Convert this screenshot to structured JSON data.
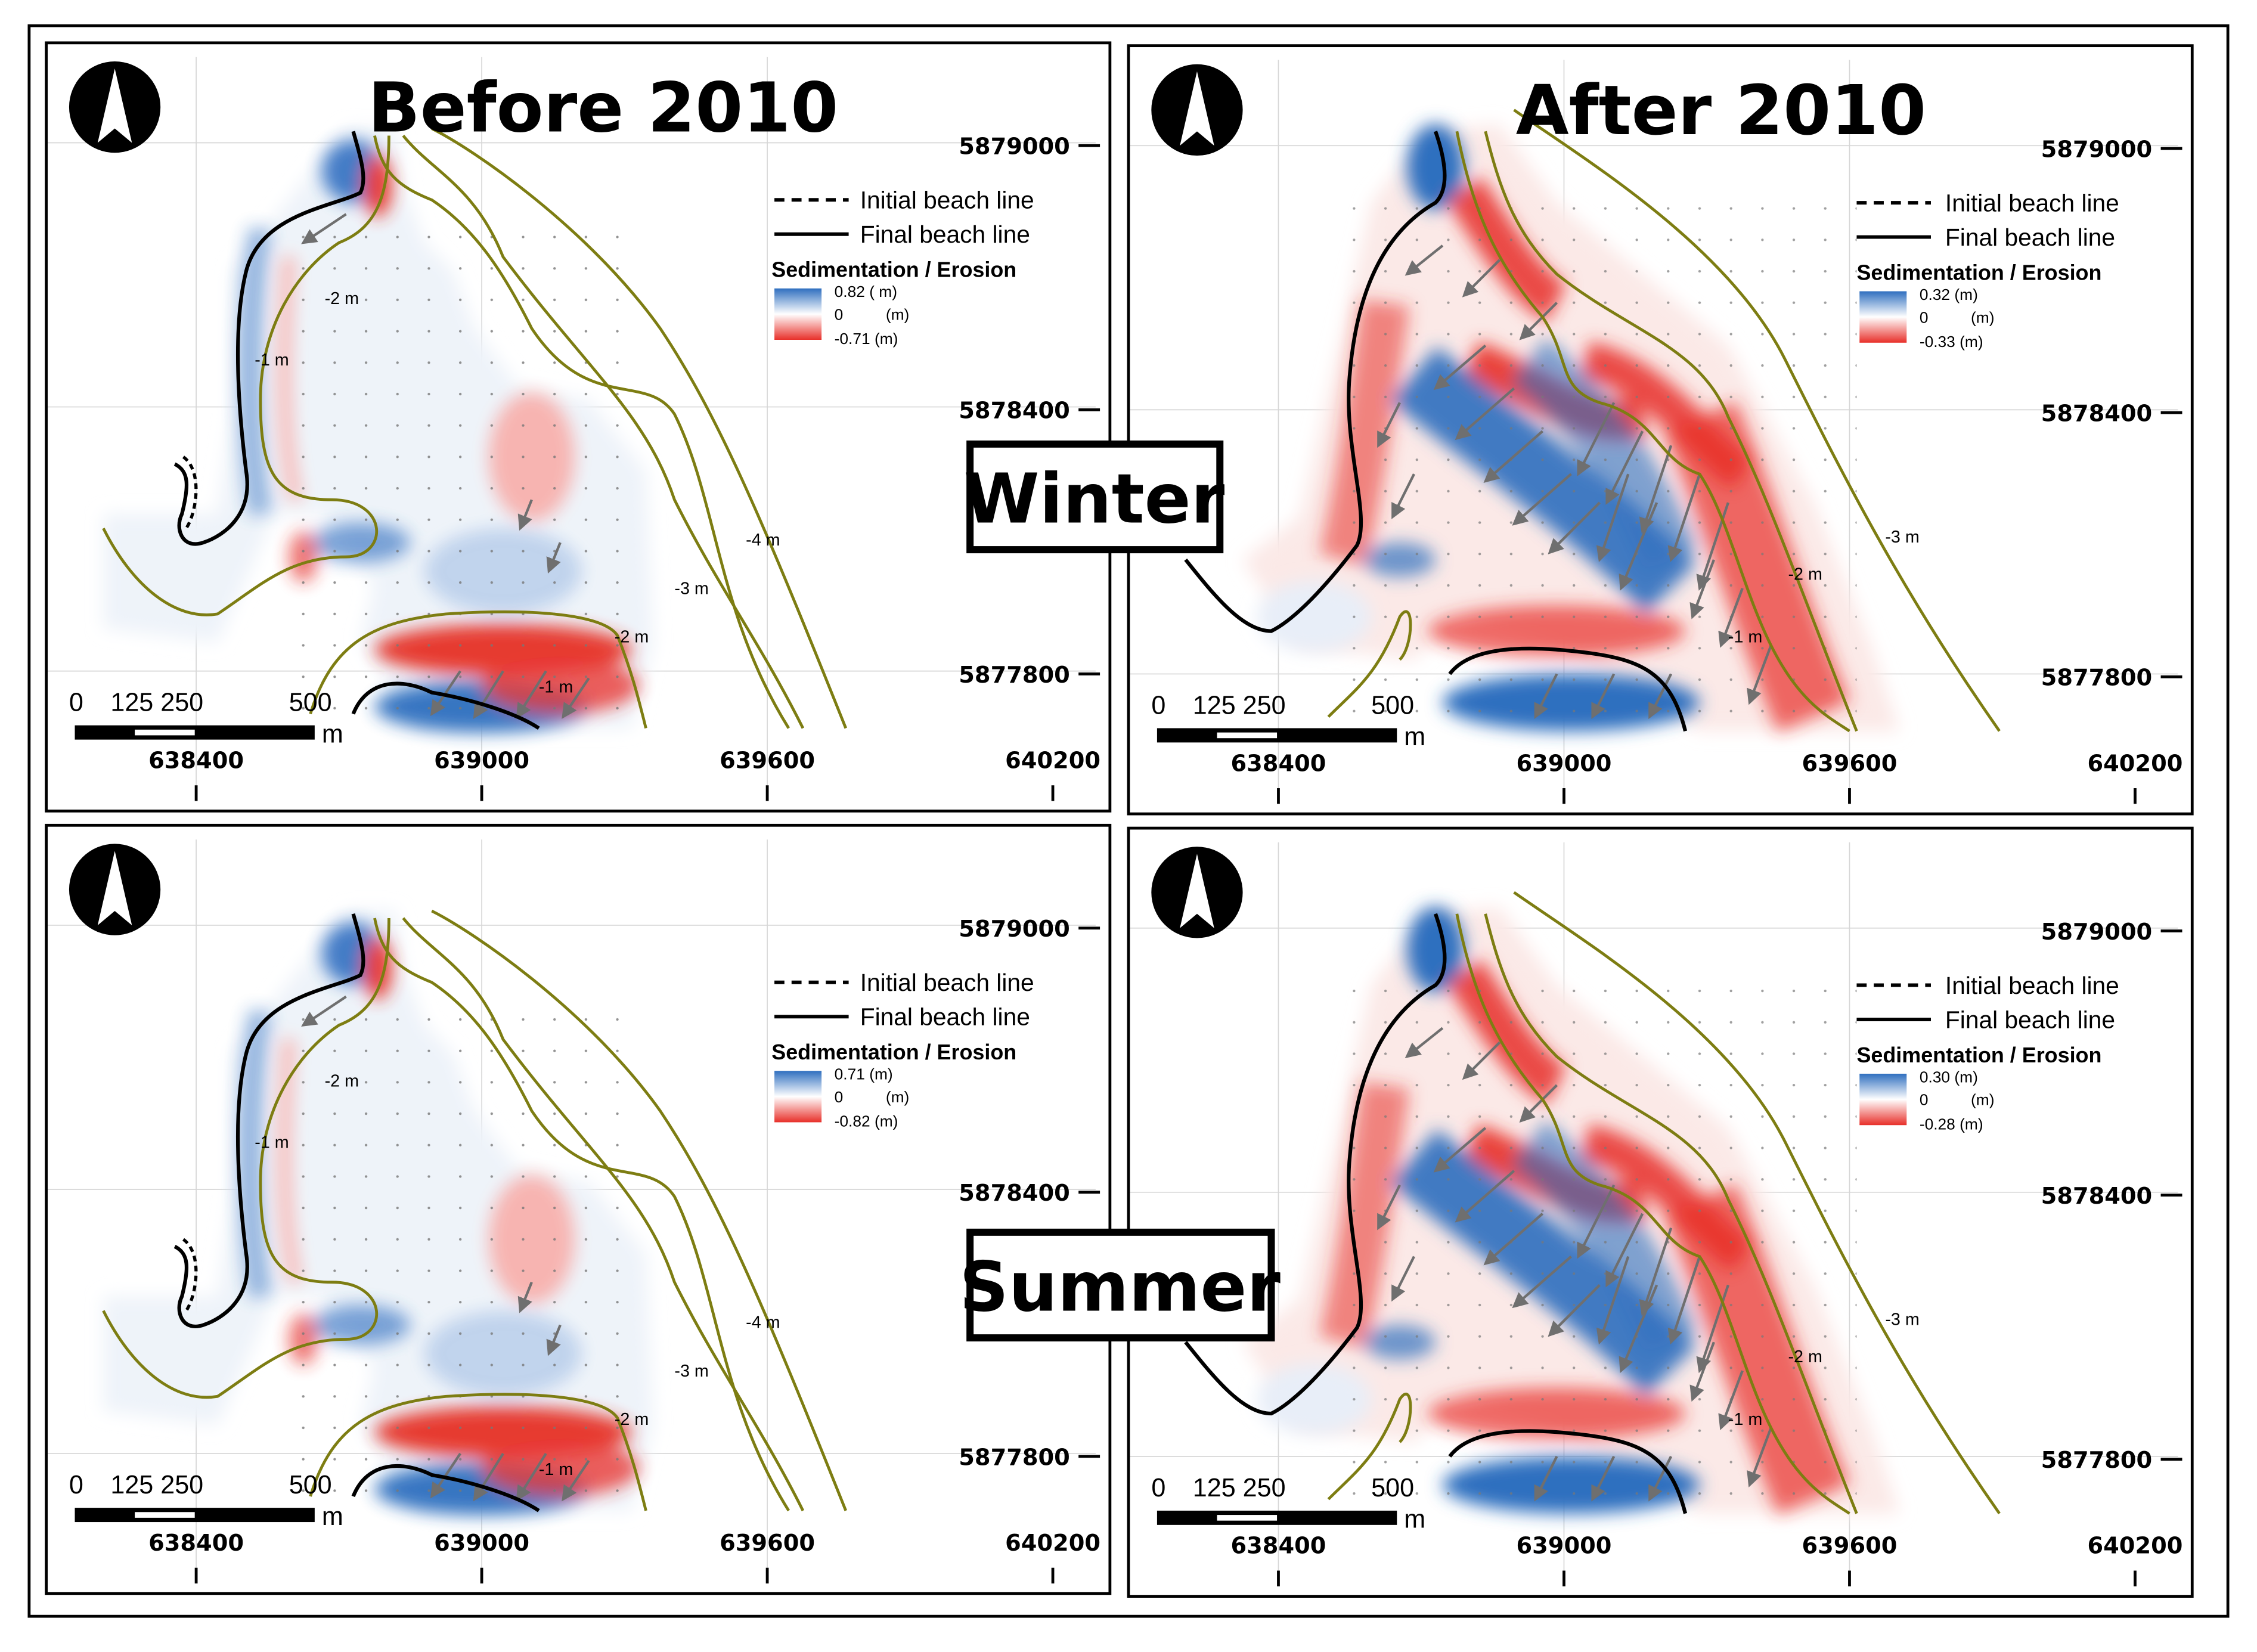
{
  "headers": {
    "before": "Before 2010",
    "after": "After 2010"
  },
  "seasons": {
    "winter": "Winter",
    "summer": "Summer"
  },
  "legend": {
    "initial": "Initial beach line",
    "final": "Final beach line",
    "colorbar_title": "Sedimentation / Erosion",
    "zero_label": "0",
    "unit": "(m)"
  },
  "panels": {
    "before_winter": {
      "max_label": "0.82 ( m)",
      "min_label": "-0.71 (m)"
    },
    "after_winter": {
      "max_label": "0.32  (m)",
      "min_label": "-0.33 (m)"
    },
    "before_summer": {
      "max_label": "0.71  (m)",
      "min_label": "-0.82 (m)"
    },
    "after_summer": {
      "max_label": "0.30  (m)",
      "min_label": "-0.28 (m)"
    }
  },
  "x_ticks": [
    "638400",
    "639000",
    "639600",
    "640200"
  ],
  "y_ticks": [
    "5879000",
    "5878400",
    "5877800"
  ],
  "scale_bar": {
    "zero": "0",
    "mid": "125 250",
    "end": "500",
    "unit": "m"
  },
  "contours_before": [
    "-2 m",
    "-1 m",
    "-4 m",
    "-3 m",
    "-2 m",
    "-1 m"
  ],
  "contours_after": [
    "-3 m",
    "-2 m",
    "-1 m"
  ],
  "colors": {
    "deposition": "#2f6fbf",
    "erosion": "#e8302a",
    "contour": "#7d7d12"
  }
}
